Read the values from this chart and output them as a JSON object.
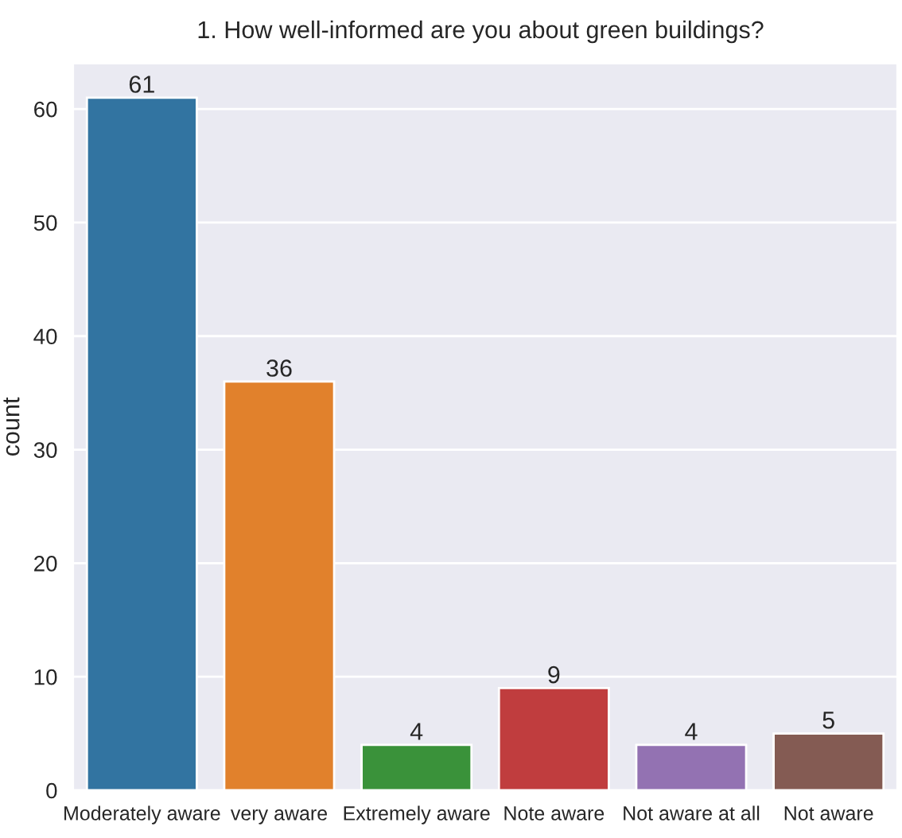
{
  "chart_data": {
    "type": "bar",
    "title": "1. How well-informed are you about green buildings?",
    "ylabel": "count",
    "categories": [
      "Moderately aware",
      "very aware",
      "Extremely aware",
      "Note aware",
      "Not aware at all",
      "Not aware"
    ],
    "values": [
      61,
      36,
      4,
      9,
      4,
      5
    ],
    "colors": [
      "#3274a1",
      "#e1812c",
      "#3a923a",
      "#c03d3e",
      "#9372b2",
      "#845b53"
    ],
    "ylim": [
      0,
      64
    ],
    "yticks": [
      0,
      10,
      20,
      30,
      40,
      50,
      60
    ],
    "grid": "y",
    "data_labels": true
  }
}
